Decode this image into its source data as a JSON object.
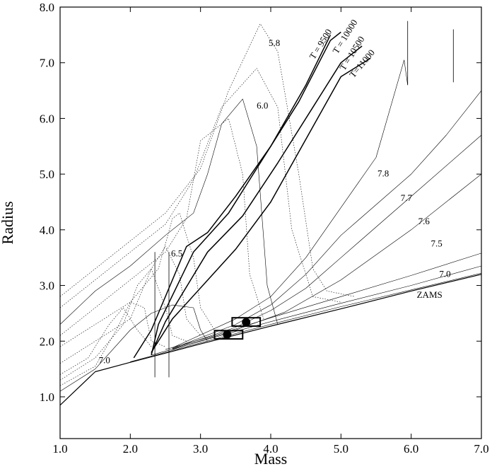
{
  "chart_data": {
    "type": "line",
    "title": "",
    "xlabel": "Mass",
    "ylabel": "Radius",
    "xlim": [
      1.0,
      7.0
    ],
    "ylim": [
      0.25,
      8.0
    ],
    "x_ticks": [
      1.0,
      2.0,
      3.0,
      4.0,
      5.0,
      6.0,
      7.0
    ],
    "x_tick_labels": [
      "1.0",
      "2.0",
      "3.0",
      "4.0",
      "5.0",
      "6.0",
      "7.0"
    ],
    "y_ticks": [
      1.0,
      2.0,
      3.0,
      4.0,
      5.0,
      6.0,
      7.0,
      8.0
    ],
    "y_tick_labels": [
      "1.0",
      "2.0",
      "3.0",
      "4.0",
      "5.0",
      "6.0",
      "7.0",
      "8.0"
    ],
    "grid": false,
    "legend": "none",
    "series": [
      {
        "style": "solid",
        "width": 1.2,
        "points": [
          [
            1.0,
            0.85
          ],
          [
            1.5,
            1.45
          ],
          [
            2.0,
            1.62
          ],
          [
            3.0,
            1.95
          ],
          [
            4.0,
            2.27
          ],
          [
            5.0,
            2.58
          ],
          [
            6.0,
            2.9
          ],
          [
            7.0,
            3.2
          ]
        ]
      },
      {
        "style": "solid",
        "width": 0.6,
        "points": [
          [
            2.0,
            1.63
          ],
          [
            3.0,
            1.97
          ],
          [
            4.0,
            2.3
          ],
          [
            5.0,
            2.62
          ],
          [
            6.0,
            2.92
          ],
          [
            7.0,
            3.22
          ]
        ]
      },
      {
        "style": "solid",
        "width": 0.6,
        "points": [
          [
            2.3,
            1.75
          ],
          [
            3.0,
            2.0
          ],
          [
            4.0,
            2.35
          ],
          [
            5.0,
            2.68
          ],
          [
            6.0,
            3.0
          ],
          [
            7.0,
            3.35
          ]
        ]
      },
      {
        "style": "solid",
        "width": 0.6,
        "points": [
          [
            2.5,
            1.85
          ],
          [
            3.2,
            2.1
          ],
          [
            4.0,
            2.42
          ],
          [
            5.0,
            2.8
          ],
          [
            6.0,
            3.18
          ],
          [
            7.0,
            3.58
          ]
        ]
      },
      {
        "style": "solid",
        "width": 0.6,
        "points": [
          [
            2.6,
            1.85
          ],
          [
            3.5,
            2.2
          ],
          [
            4.2,
            2.52
          ],
          [
            5.0,
            3.1
          ],
          [
            6.0,
            4.0
          ],
          [
            7.0,
            5.0
          ]
        ]
      },
      {
        "style": "solid",
        "width": 0.6,
        "points": [
          [
            2.6,
            1.86
          ],
          [
            3.5,
            2.25
          ],
          [
            4.0,
            2.55
          ],
          [
            4.5,
            2.95
          ],
          [
            5.0,
            3.5
          ],
          [
            6.0,
            4.6
          ],
          [
            7.0,
            5.7
          ]
        ]
      },
      {
        "style": "solid",
        "width": 0.6,
        "points": [
          [
            2.6,
            1.87
          ],
          [
            3.5,
            2.3
          ],
          [
            4.0,
            2.65
          ],
          [
            4.5,
            3.2
          ],
          [
            5.0,
            3.9
          ],
          [
            6.0,
            5.0
          ],
          [
            6.5,
            5.7
          ],
          [
            7.0,
            6.5
          ]
        ]
      },
      {
        "style": "solid",
        "width": 0.6,
        "points": [
          [
            2.6,
            1.88
          ],
          [
            3.5,
            2.4
          ],
          [
            4.0,
            2.8
          ],
          [
            4.5,
            3.5
          ],
          [
            5.0,
            4.4
          ],
          [
            5.5,
            5.3
          ],
          [
            5.9,
            7.05
          ],
          [
            5.95,
            6.6
          ]
        ]
      },
      {
        "style": "solid",
        "width": 0.6,
        "points": [
          [
            1.0,
            1.1
          ],
          [
            1.5,
            1.5
          ],
          [
            2.0,
            2.2
          ],
          [
            2.3,
            2.5
          ],
          [
            2.6,
            2.65
          ],
          [
            2.9,
            2.6
          ],
          [
            3.0,
            2.2
          ],
          [
            3.1,
            2.0
          ]
        ]
      },
      {
        "style": "solid",
        "width": 0.6,
        "points": [
          [
            1.0,
            2.3
          ],
          [
            1.5,
            2.9
          ],
          [
            2.0,
            3.35
          ],
          [
            2.5,
            3.9
          ],
          [
            2.9,
            4.3
          ],
          [
            3.1,
            5.0
          ],
          [
            3.3,
            5.9
          ],
          [
            3.6,
            6.35
          ],
          [
            3.8,
            5.5
          ],
          [
            3.95,
            3.0
          ],
          [
            4.1,
            2.3
          ]
        ]
      },
      {
        "style": "dotted",
        "width": 0.6,
        "points": [
          [
            1.0,
            2.8
          ],
          [
            1.5,
            3.3
          ],
          [
            2.0,
            3.8
          ],
          [
            2.5,
            4.3
          ],
          [
            3.0,
            5.1
          ],
          [
            3.4,
            6.5
          ],
          [
            3.85,
            7.7
          ],
          [
            4.1,
            7.2
          ],
          [
            4.4,
            5.0
          ],
          [
            4.6,
            3.3
          ],
          [
            4.8,
            2.9
          ],
          [
            5.2,
            2.8
          ]
        ]
      },
      {
        "style": "dotted",
        "width": 0.6,
        "points": [
          [
            1.0,
            2.6
          ],
          [
            1.5,
            3.1
          ],
          [
            2.0,
            3.6
          ],
          [
            2.5,
            4.1
          ],
          [
            2.9,
            4.9
          ],
          [
            3.3,
            6.2
          ],
          [
            3.8,
            6.9
          ],
          [
            4.1,
            6.2
          ],
          [
            4.3,
            4.0
          ],
          [
            4.6,
            2.8
          ],
          [
            5.0,
            2.7
          ]
        ]
      },
      {
        "style": "dotted",
        "width": 0.6,
        "points": [
          [
            1.0,
            2.1
          ],
          [
            1.5,
            2.6
          ],
          [
            2.0,
            3.1
          ],
          [
            2.5,
            3.6
          ],
          [
            2.8,
            4.2
          ],
          [
            3.0,
            5.6
          ],
          [
            3.4,
            6.0
          ],
          [
            3.6,
            5.0
          ],
          [
            3.7,
            3.2
          ],
          [
            3.9,
            2.4
          ]
        ]
      },
      {
        "style": "dotted",
        "width": 0.6,
        "points": [
          [
            1.0,
            1.9
          ],
          [
            1.5,
            2.3
          ],
          [
            2.0,
            2.7
          ],
          [
            2.4,
            3.3
          ],
          [
            2.6,
            4.2
          ],
          [
            2.7,
            4.3
          ],
          [
            2.9,
            3.5
          ],
          [
            3.0,
            2.6
          ],
          [
            3.2,
            2.2
          ]
        ]
      },
      {
        "style": "dotted",
        "width": 0.6,
        "points": [
          [
            1.0,
            1.6
          ],
          [
            1.5,
            2.0
          ],
          [
            2.0,
            2.4
          ],
          [
            2.3,
            3.3
          ],
          [
            2.5,
            3.7
          ],
          [
            2.7,
            3.2
          ],
          [
            2.8,
            2.4
          ],
          [
            3.0,
            2.1
          ]
        ]
      },
      {
        "style": "dotted",
        "width": 0.6,
        "points": [
          [
            1.0,
            1.3
          ],
          [
            1.5,
            1.7
          ],
          [
            1.9,
            2.3
          ],
          [
            2.1,
            3.0
          ],
          [
            2.3,
            3.3
          ],
          [
            2.5,
            2.6
          ],
          [
            2.6,
            2.1
          ],
          [
            2.8,
            2.0
          ]
        ]
      },
      {
        "style": "dotted",
        "width": 0.6,
        "points": [
          [
            1.0,
            1.2
          ],
          [
            1.5,
            1.55
          ],
          [
            1.8,
            2.2
          ],
          [
            2.0,
            2.7
          ],
          [
            2.2,
            2.6
          ],
          [
            2.3,
            2.0
          ],
          [
            2.5,
            1.9
          ]
        ]
      },
      {
        "style": "dotted",
        "width": 0.6,
        "points": [
          [
            1.0,
            1.4
          ],
          [
            1.4,
            1.7
          ],
          [
            1.7,
            2.3
          ],
          [
            1.9,
            2.6
          ],
          [
            2.1,
            2.2
          ],
          [
            2.3,
            1.9
          ]
        ]
      },
      {
        "style": "solid",
        "width": 1.5,
        "points": [
          [
            2.05,
            1.7
          ],
          [
            2.3,
            2.2
          ],
          [
            2.8,
            3.7
          ],
          [
            3.1,
            3.95
          ],
          [
            3.5,
            4.6
          ],
          [
            4.0,
            5.5
          ],
          [
            4.5,
            6.6
          ],
          [
            4.85,
            7.5
          ]
        ]
      },
      {
        "style": "solid",
        "width": 1.5,
        "points": [
          [
            2.3,
            1.75
          ],
          [
            2.4,
            2.3
          ],
          [
            2.9,
            3.6
          ],
          [
            3.4,
            4.3
          ],
          [
            3.8,
            5.1
          ],
          [
            4.4,
            6.3
          ],
          [
            4.85,
            7.4
          ],
          [
            5.0,
            7.55
          ]
        ]
      },
      {
        "style": "solid",
        "width": 1.5,
        "points": [
          [
            2.3,
            1.78
          ],
          [
            2.5,
            2.35
          ],
          [
            3.1,
            3.6
          ],
          [
            3.6,
            4.25
          ],
          [
            4.1,
            5.2
          ],
          [
            4.6,
            6.2
          ],
          [
            5.0,
            7.0
          ],
          [
            5.3,
            7.3
          ]
        ]
      },
      {
        "style": "solid",
        "width": 1.5,
        "points": [
          [
            2.3,
            1.8
          ],
          [
            2.6,
            2.4
          ],
          [
            3.5,
            3.65
          ],
          [
            4.0,
            4.5
          ],
          [
            5.0,
            6.75
          ],
          [
            5.42,
            7.08
          ]
        ]
      }
    ],
    "segments": [
      {
        "style": "solid",
        "width": 0.8,
        "points": [
          [
            2.35,
            3.6
          ],
          [
            2.35,
            1.35
          ]
        ]
      },
      {
        "style": "solid",
        "width": 0.8,
        "points": [
          [
            2.55,
            3.6
          ],
          [
            2.55,
            1.35
          ]
        ]
      },
      {
        "style": "solid",
        "width": 0.8,
        "points": [
          [
            5.95,
            7.75
          ],
          [
            5.95,
            6.6
          ]
        ]
      },
      {
        "style": "solid",
        "width": 0.8,
        "points": [
          [
            6.6,
            7.6
          ],
          [
            6.6,
            6.65
          ]
        ]
      }
    ],
    "rectangles": [
      {
        "x": [
          3.2,
          3.6
        ],
        "y": [
          2.04,
          2.19
        ]
      },
      {
        "x": [
          3.45,
          3.85
        ],
        "y": [
          2.27,
          2.42
        ]
      }
    ],
    "markers": [
      {
        "x": 3.38,
        "y": 2.12
      },
      {
        "x": 3.65,
        "y": 2.34
      }
    ],
    "annotations": [
      {
        "text": "5.8",
        "x": 3.97,
        "y": 7.3,
        "angle": 0
      },
      {
        "text": "6.0",
        "x": 3.8,
        "y": 6.18,
        "angle": 0
      },
      {
        "text": "6.5",
        "x": 2.58,
        "y": 3.52,
        "angle": 0
      },
      {
        "text": "7.0",
        "x": 1.55,
        "y": 1.6,
        "angle": 0
      },
      {
        "text": "7.8",
        "x": 5.52,
        "y": 4.96,
        "angle": 0
      },
      {
        "text": "7.7",
        "x": 5.85,
        "y": 4.52,
        "angle": 0
      },
      {
        "text": "7.6",
        "x": 6.1,
        "y": 4.1,
        "angle": 0
      },
      {
        "text": "7.5",
        "x": 6.28,
        "y": 3.7,
        "angle": 0
      },
      {
        "text": "7.0",
        "x": 6.4,
        "y": 3.15,
        "angle": 0
      },
      {
        "text": "ZAMS",
        "x": 6.08,
        "y": 2.78,
        "angle": 0
      },
      {
        "text": "T = 9500",
        "x": 4.62,
        "y": 7.05,
        "angle": -58
      },
      {
        "text": "T = 10000",
        "x": 4.95,
        "y": 7.15,
        "angle": -58
      },
      {
        "text": "T = 10500",
        "x": 5.05,
        "y": 6.85,
        "angle": -58
      },
      {
        "text": "T=11000",
        "x": 5.18,
        "y": 6.72,
        "angle": -50
      }
    ]
  }
}
